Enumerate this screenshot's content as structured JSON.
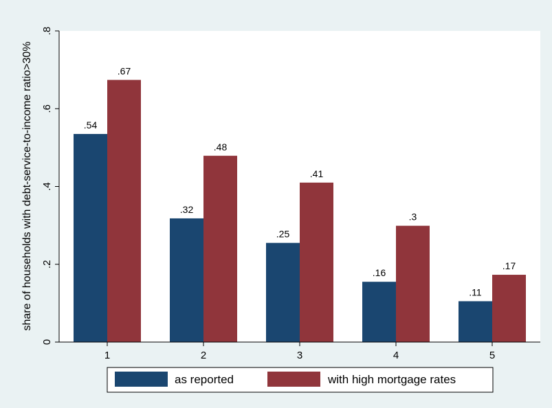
{
  "colors": {
    "background": "#eaf2f3",
    "plot_background": "#ffffff",
    "series_1": "#1a4670",
    "series_2": "#90353b"
  },
  "chart_data": {
    "type": "bar",
    "categories": [
      "1",
      "2",
      "3",
      "4",
      "5"
    ],
    "series": [
      {
        "name": "as reported",
        "values": [
          0.535,
          0.318,
          0.255,
          0.155,
          0.105
        ],
        "labels": [
          ".54",
          ".32",
          ".25",
          ".16",
          ".11"
        ]
      },
      {
        "name": "with high mortgage rates",
        "values": [
          0.674,
          0.479,
          0.41,
          0.299,
          0.173
        ],
        "labels": [
          ".67",
          ".48",
          ".41",
          ".3",
          ".17"
        ]
      }
    ],
    "title": "",
    "xlabel": "",
    "ylabel": "share of households with debt-service-to-income ratio>30%",
    "ylim": [
      0,
      0.8
    ],
    "yticks": [
      0,
      0.2,
      0.4,
      0.6,
      0.8
    ],
    "ytick_labels": [
      "0",
      ".2",
      ".4",
      ".6",
      ".8"
    ],
    "grid": false,
    "legend_position": "bottom"
  }
}
